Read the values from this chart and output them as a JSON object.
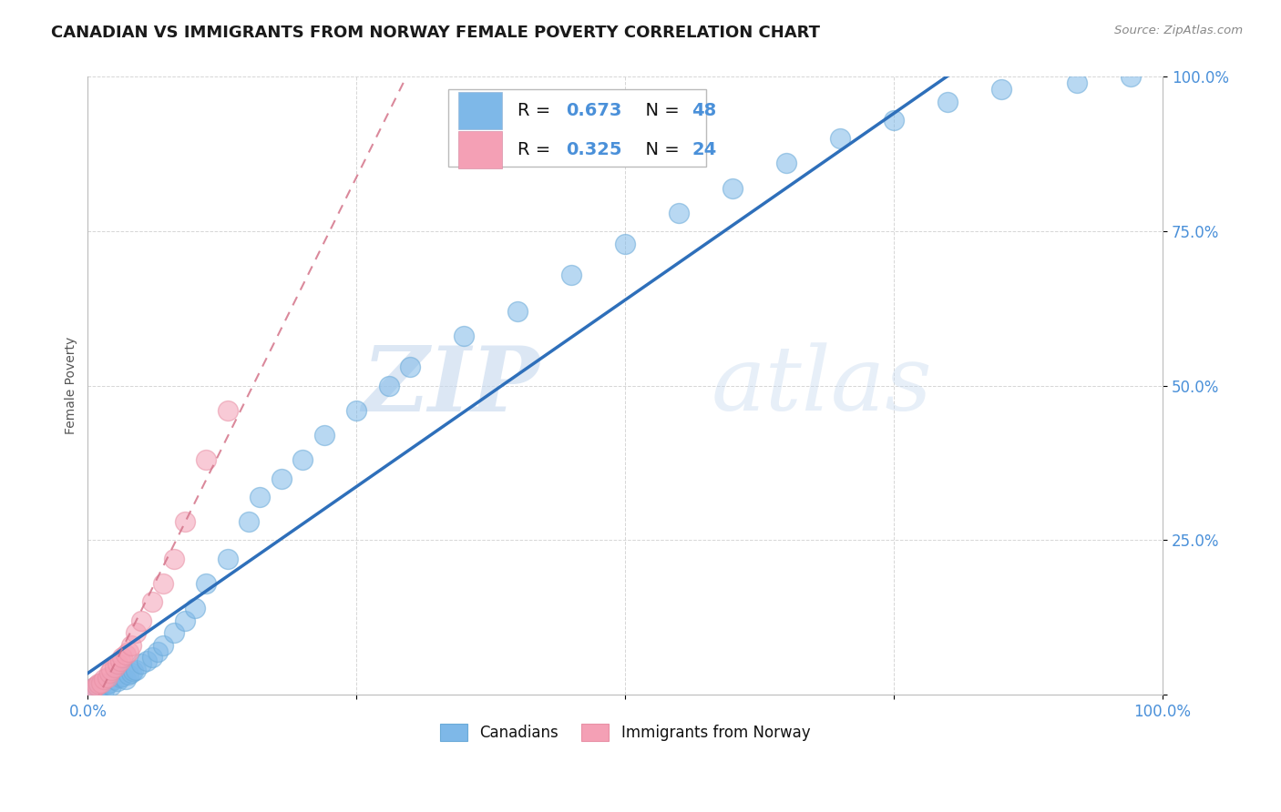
{
  "title": "CANADIAN VS IMMIGRANTS FROM NORWAY FEMALE POVERTY CORRELATION CHART",
  "source": "Source: ZipAtlas.com",
  "ylabel": "Female Poverty",
  "watermark_zip": "ZIP",
  "watermark_atlas": "atlas",
  "xlim": [
    0,
    1
  ],
  "ylim": [
    0,
    1
  ],
  "canadian_color": "#7eb8e8",
  "canadian_edge": "#6aaad8",
  "immigrant_color": "#f4a0b5",
  "immigrant_edge": "#e890a5",
  "canadian_R": 0.673,
  "canadian_N": 48,
  "immigrant_R": 0.325,
  "immigrant_N": 24,
  "regression_blue": "#2e6fba",
  "regression_pink": "#d4748a",
  "tick_color": "#4a90d9",
  "title_fontsize": 13,
  "axis_label_fontsize": 10,
  "tick_fontsize": 12,
  "legend_fontsize": 14,
  "canadian_x": [
    0.005,
    0.008,
    0.01,
    0.012,
    0.015,
    0.018,
    0.02,
    0.022,
    0.025,
    0.028,
    0.03,
    0.032,
    0.035,
    0.038,
    0.04,
    0.042,
    0.045,
    0.05,
    0.055,
    0.06,
    0.065,
    0.07,
    0.08,
    0.09,
    0.1,
    0.11,
    0.13,
    0.15,
    0.16,
    0.18,
    0.2,
    0.22,
    0.25,
    0.28,
    0.3,
    0.35,
    0.4,
    0.45,
    0.5,
    0.55,
    0.6,
    0.65,
    0.7,
    0.75,
    0.8,
    0.85,
    0.92,
    0.97
  ],
  "canadian_y": [
    0.01,
    0.005,
    0.012,
    0.015,
    0.008,
    0.018,
    0.02,
    0.015,
    0.025,
    0.022,
    0.028,
    0.03,
    0.025,
    0.032,
    0.035,
    0.038,
    0.04,
    0.05,
    0.055,
    0.06,
    0.07,
    0.08,
    0.1,
    0.12,
    0.14,
    0.18,
    0.22,
    0.28,
    0.32,
    0.35,
    0.38,
    0.42,
    0.46,
    0.5,
    0.53,
    0.58,
    0.62,
    0.68,
    0.73,
    0.78,
    0.82,
    0.86,
    0.9,
    0.93,
    0.96,
    0.98,
    0.99,
    1.0
  ],
  "immigrant_x": [
    0.004,
    0.006,
    0.008,
    0.01,
    0.012,
    0.015,
    0.018,
    0.02,
    0.022,
    0.025,
    0.028,
    0.03,
    0.032,
    0.035,
    0.038,
    0.04,
    0.045,
    0.05,
    0.06,
    0.07,
    0.08,
    0.09,
    0.11,
    0.13
  ],
  "immigrant_y": [
    0.008,
    0.012,
    0.015,
    0.018,
    0.02,
    0.025,
    0.028,
    0.035,
    0.04,
    0.045,
    0.05,
    0.055,
    0.06,
    0.065,
    0.07,
    0.08,
    0.1,
    0.12,
    0.15,
    0.18,
    0.22,
    0.28,
    0.38,
    0.46
  ]
}
